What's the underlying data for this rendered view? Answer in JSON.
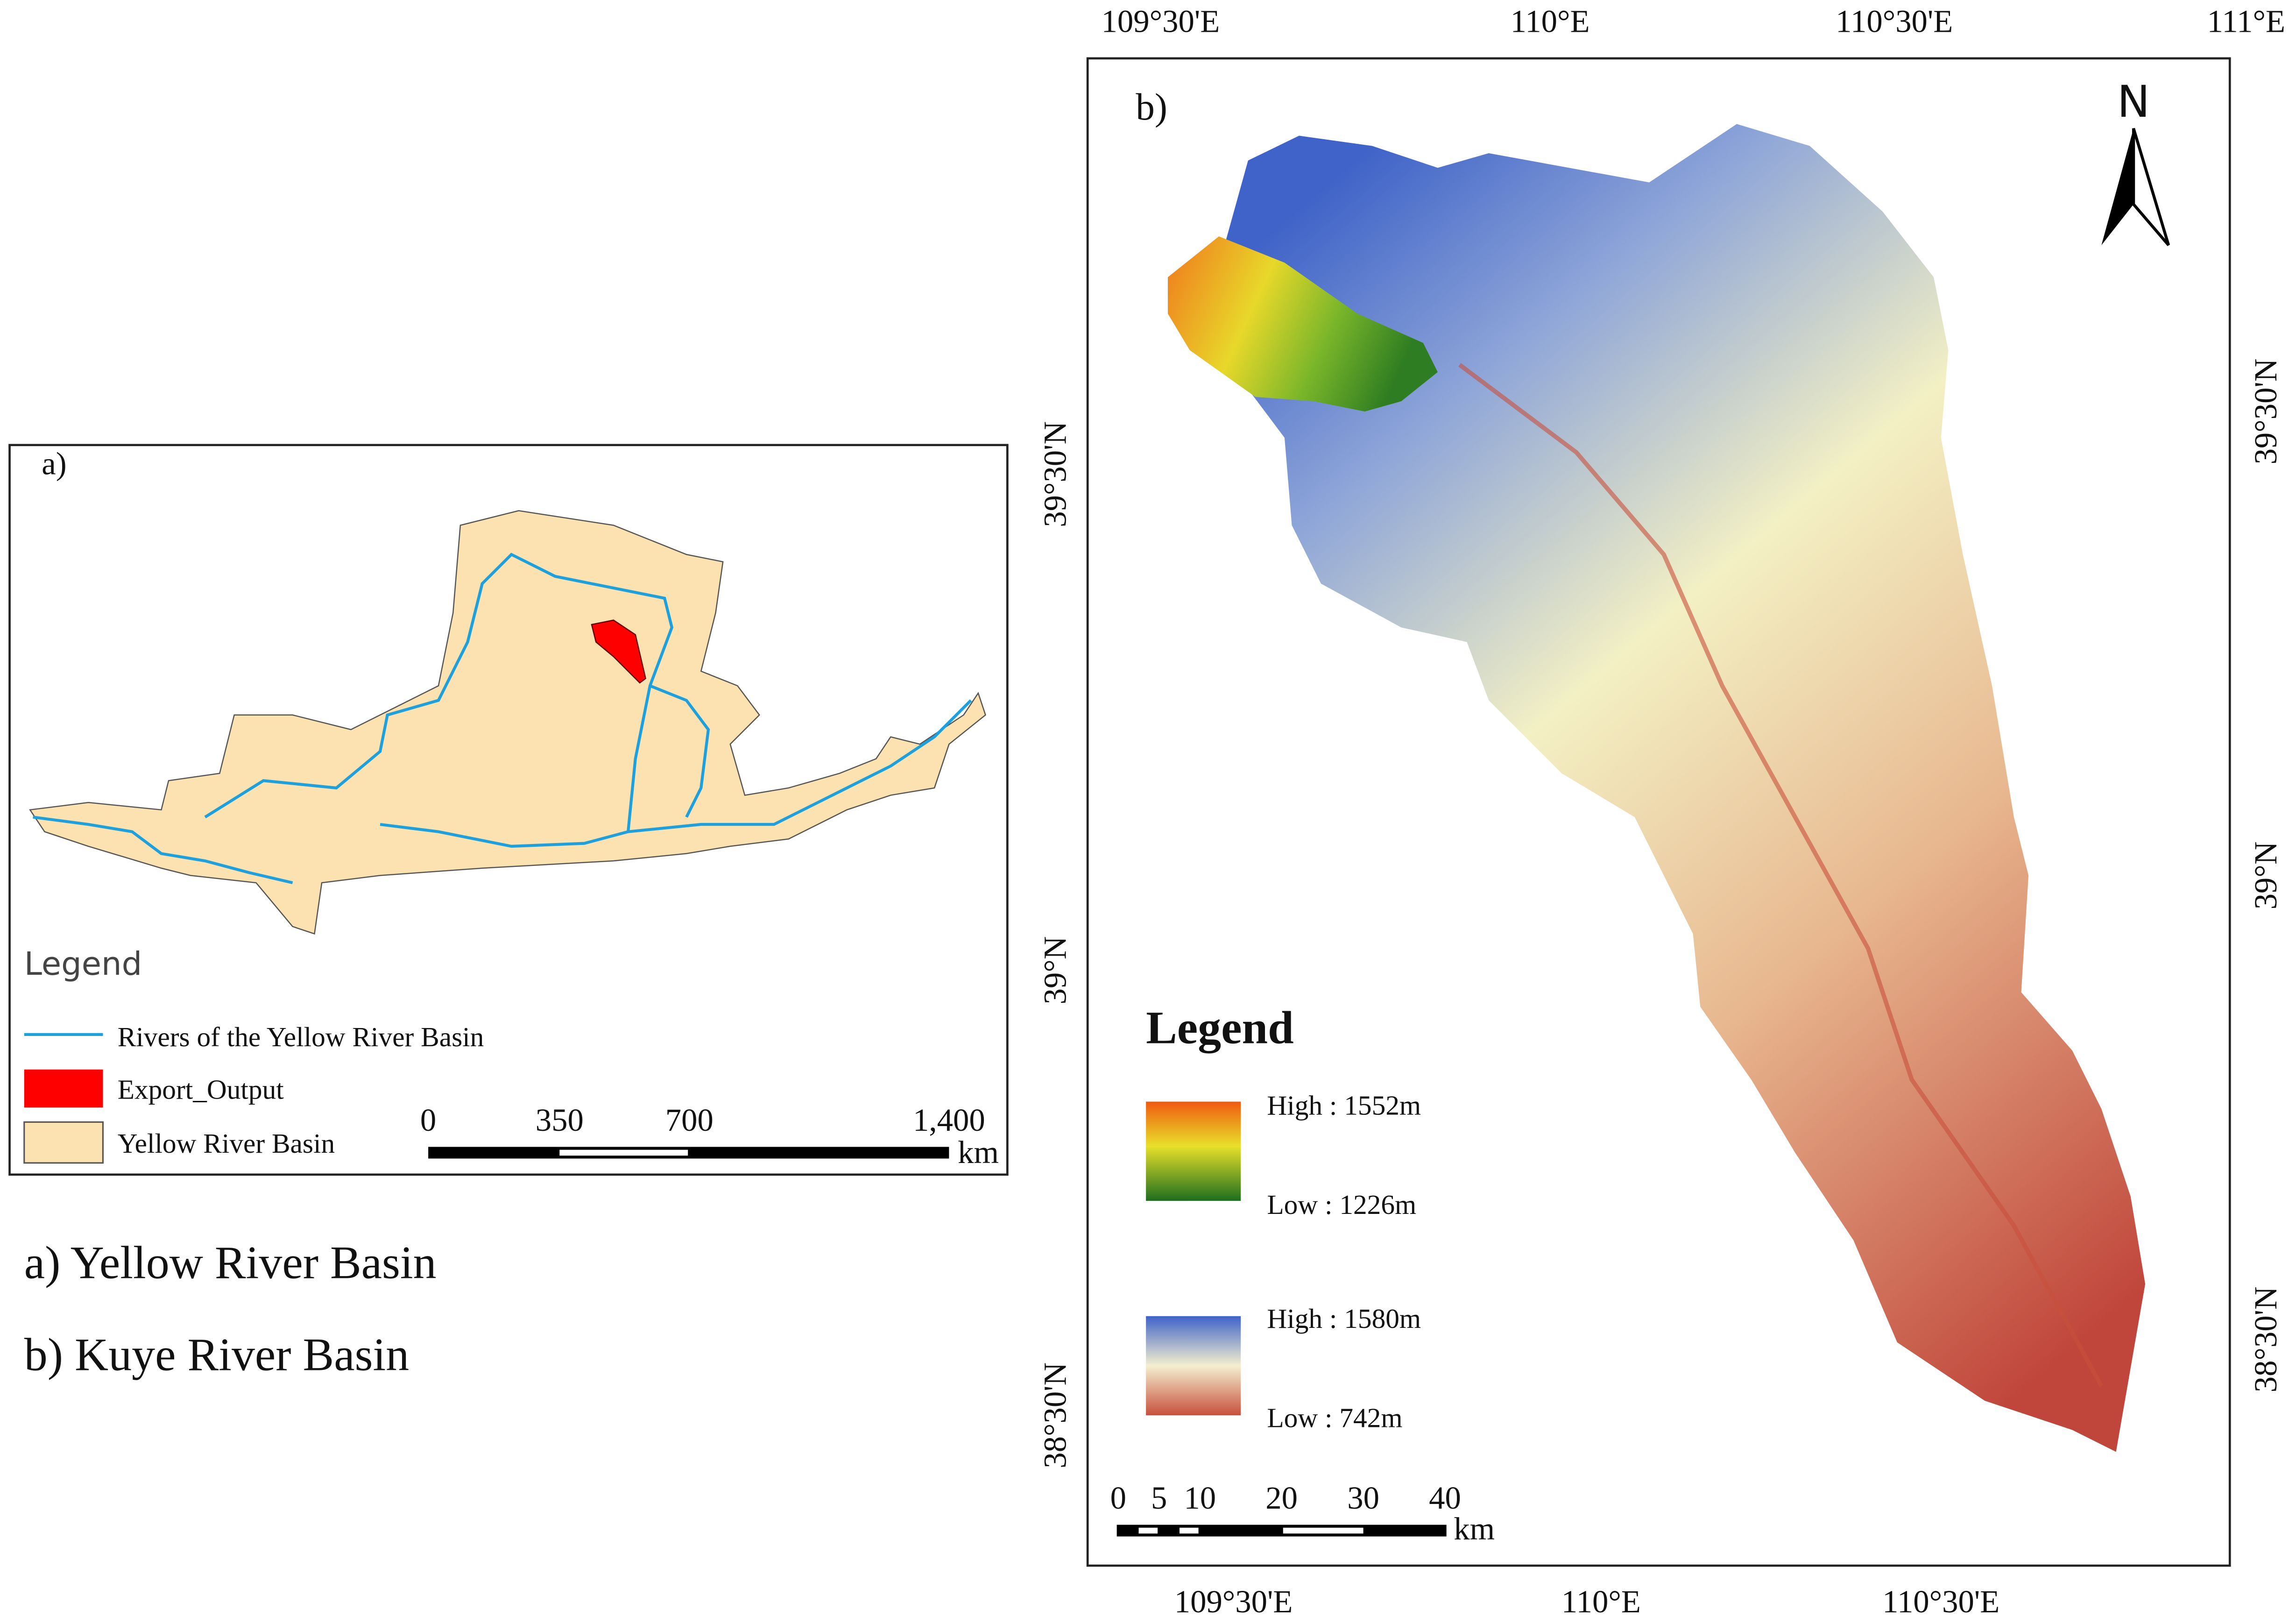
{
  "panel_a": {
    "label": "a)",
    "legend": {
      "title": "Legend",
      "items": [
        "Rivers of the Yellow River Basin",
        "Export_Output",
        "Yellow River Basin"
      ]
    },
    "scale_bar": {
      "ticks": [
        "0",
        "350",
        "700",
        "1,400"
      ],
      "unit": "km"
    }
  },
  "captions": [
    "a)  Yellow River Basin",
    "b)  Kuye River Basin"
  ],
  "panel_b": {
    "label": "b)",
    "north": "N",
    "top_labels": [
      "109°30'E",
      "110°E",
      "110°30'E",
      "111°E"
    ],
    "bottom_labels": [
      "109°30'E",
      "110°E",
      "110°30'E"
    ],
    "left_labels": [
      "39°30'N",
      "39°N",
      "38°30'N"
    ],
    "right_labels": [
      "39°30'N",
      "39°N",
      "38°30'N"
    ],
    "legend": {
      "title": "Legend",
      "items": [
        "High : 1552m",
        "Low : 1226m",
        "High : 1580m",
        "Low : 742m"
      ]
    },
    "scale_bar": {
      "ticks": [
        "0",
        "5",
        "10",
        "20",
        "30",
        "40"
      ],
      "unit": "km"
    }
  }
}
